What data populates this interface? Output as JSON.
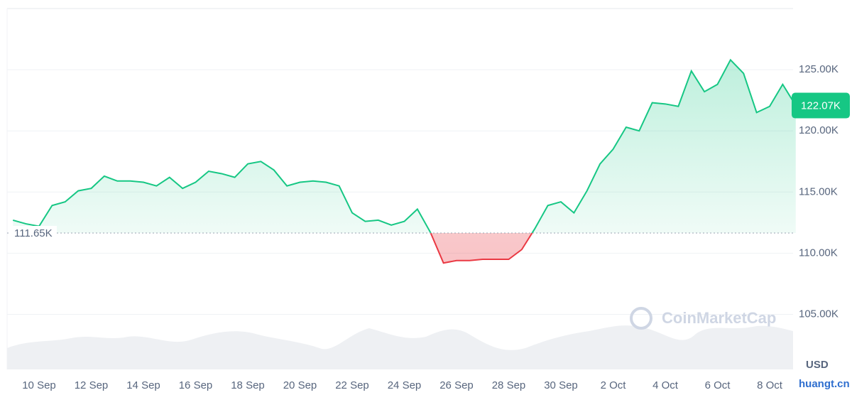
{
  "chart_data": {
    "type": "line",
    "categories": [
      null,
      null,
      "10 Sep",
      null,
      null,
      null,
      "12 Sep",
      null,
      null,
      null,
      "14 Sep",
      null,
      null,
      null,
      "16 Sep",
      null,
      null,
      null,
      "18 Sep",
      null,
      null,
      null,
      "20 Sep",
      null,
      null,
      null,
      "22 Sep",
      null,
      null,
      null,
      "24 Sep",
      null,
      null,
      null,
      "26 Sep",
      null,
      null,
      null,
      "28 Sep",
      null,
      null,
      null,
      "30 Sep",
      null,
      null,
      null,
      "2 Oct",
      null,
      null,
      null,
      "4 Oct",
      null,
      null,
      null,
      "6 Oct",
      null,
      null,
      null,
      "8 Oct",
      null,
      null
    ],
    "values": [
      112700,
      112400,
      112200,
      113900,
      114200,
      115100,
      115300,
      116300,
      115900,
      115900,
      115800,
      115500,
      116200,
      115300,
      115800,
      116700,
      116500,
      116200,
      117300,
      117500,
      116800,
      115500,
      115800,
      115900,
      115800,
      115500,
      113300,
      112600,
      112700,
      112300,
      112600,
      113600,
      111700,
      109200,
      109400,
      109400,
      109500,
      109500,
      109500,
      110300,
      112000,
      113900,
      114200,
      113300,
      115100,
      117300,
      118500,
      120300,
      120000,
      122300,
      122200,
      122000,
      124900,
      123200,
      123800,
      125800,
      124700,
      121500,
      122000,
      123800,
      122070
    ],
    "color_up": "#16c784",
    "color_down": "#ea3943",
    "baseline": {
      "value": 111650,
      "label": "111.65K"
    },
    "current": {
      "value": 122070,
      "label": "122.07K"
    },
    "ylim": [
      100500,
      130000
    ],
    "yticks": [
      {
        "value": 105000,
        "label": "105.00K"
      },
      {
        "value": 110000,
        "label": "110.00K"
      },
      {
        "value": 115000,
        "label": "115.00K"
      },
      {
        "value": 120000,
        "label": "120.00K"
      },
      {
        "value": 125000,
        "label": "125.00K"
      }
    ],
    "grid": true,
    "currency_label": "USD",
    "watermark": "CoinMarketCap",
    "site_watermark": "huangt.cn"
  }
}
